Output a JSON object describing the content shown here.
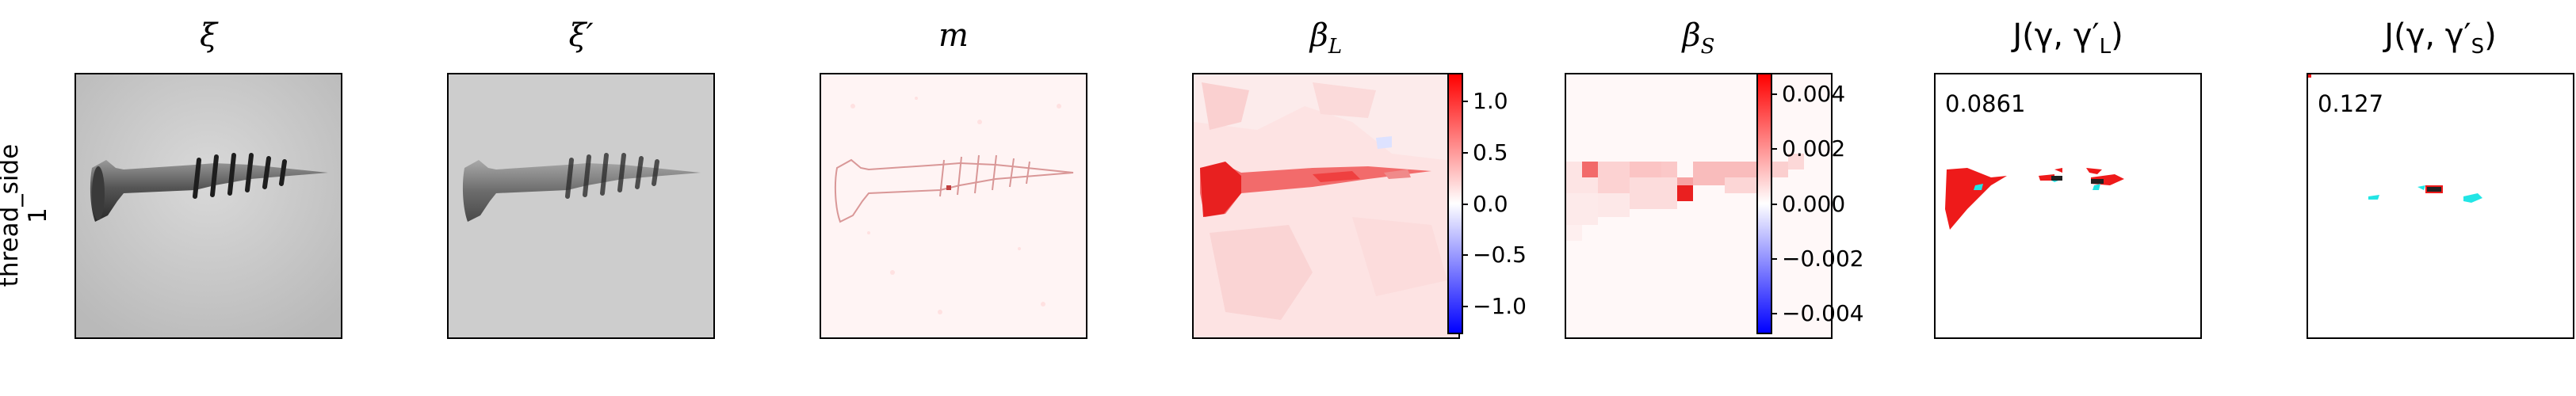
{
  "row_label": {
    "line1": "thread_side",
    "line2": "1"
  },
  "titles": {
    "xi": "ξ",
    "xi_prime": "ξ′",
    "m": "m",
    "beta_l": "β",
    "beta_l_sub": "L",
    "beta_s": "β",
    "beta_s_sub": "S",
    "j_l": "J(γ, γ′",
    "j_l_sub": "L",
    "j_l_close": ")",
    "j_s": "J(γ, γ′",
    "j_s_sub": "S",
    "j_s_close": ")"
  },
  "colorbar_l": {
    "ticks": [
      "1.0",
      "0.5",
      "0.0",
      "−0.5",
      "−1.0"
    ],
    "min": -1.25,
    "max": 1.25
  },
  "colorbar_s": {
    "ticks": [
      "0.004",
      "0.002",
      "0.000",
      "−0.002",
      "−0.004"
    ],
    "min": -0.0048,
    "max": 0.0048
  },
  "scores": {
    "j_l": "0.0861",
    "j_s": "0.127"
  },
  "colors": {
    "positive": "#ff0000",
    "negative": "#0000ff",
    "match_cyan": "#22e5e5"
  }
}
